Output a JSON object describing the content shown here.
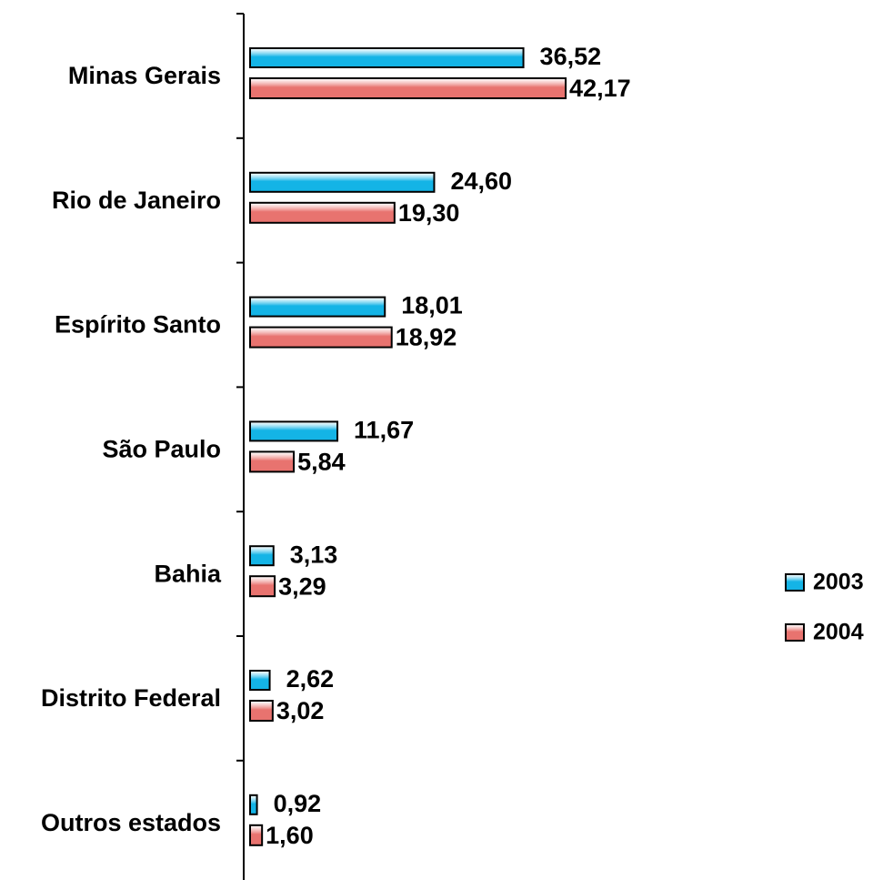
{
  "chart_data": {
    "type": "bar",
    "orientation": "horizontal",
    "categories": [
      "Minas Gerais",
      "Rio de Janeiro",
      "Espírito Santo",
      "São Paulo",
      "Bahia",
      "Distrito Federal",
      "Outros estados"
    ],
    "series": [
      {
        "name": "2003",
        "color": "#14b4e6",
        "values": [
          36.52,
          24.6,
          18.01,
          11.67,
          3.13,
          2.62,
          0.92
        ],
        "value_labels": [
          "36,52",
          "24,60",
          "18,01",
          "11,67",
          "3,13",
          "2,62",
          "0,92"
        ]
      },
      {
        "name": "2004",
        "color": "#e8736f",
        "values": [
          42.17,
          19.3,
          18.92,
          5.84,
          3.29,
          3.02,
          1.6
        ],
        "value_labels": [
          "42,17",
          "19,30",
          "18,92",
          "5,84",
          "3,29",
          "3,02",
          "1,60"
        ]
      }
    ],
    "legend": "right"
  }
}
